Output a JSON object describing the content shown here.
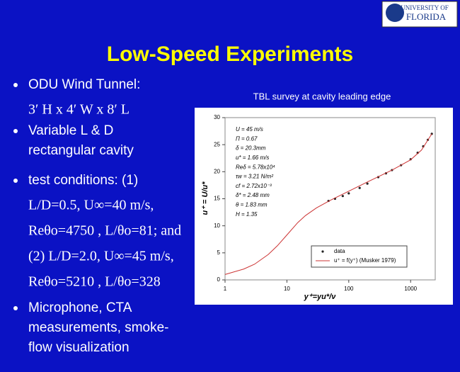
{
  "slide": {
    "logo": [
      "UNIVERSITY OF",
      "FLORIDA"
    ],
    "title": "Low-Speed Experiments",
    "bullets": [
      {
        "lines": [
          {
            "text": "ODU Wind Tunnel:",
            "font": "sans"
          },
          {
            "text": "3′ H x 4′ W x 8′ L",
            "font": "serif"
          }
        ]
      },
      {
        "lines": [
          {
            "text": "Variable L & D",
            "font": "sans"
          },
          {
            "text": "rectangular cavity",
            "font": "sans"
          }
        ]
      },
      {
        "lines": [
          {
            "text": "test conditions:  (1)",
            "font": "sans"
          },
          {
            "text": "L/D=0.5, U∞=40 m/s,",
            "font": "serif"
          },
          {
            "text": "Reθo=4750 , L/θo=81; and",
            "font": "serif"
          },
          {
            "text": "(2) L/D=2.0, U∞=45 m/s,",
            "font": "serif"
          },
          {
            "text": "Reθo=5210 , L/θo=328",
            "font": "serif"
          }
        ]
      },
      {
        "lines": [
          {
            "text": "Microphone, CTA",
            "font": "sans"
          },
          {
            "text": "measurements, smoke-",
            "font": "sans"
          },
          {
            "text": "flow visualization",
            "font": "sans"
          }
        ]
      }
    ]
  },
  "chart_data": {
    "type": "line",
    "title": "TBL survey at cavity leading edge",
    "x_label": "y⁺=yu*/ν",
    "y_label": "u⁺ = U/u*",
    "xlog": true,
    "xlim": [
      1,
      2500
    ],
    "xticks": [
      1,
      10,
      100,
      1000
    ],
    "ylim": [
      0,
      30
    ],
    "yticks": [
      0,
      5,
      10,
      15,
      20,
      25,
      30
    ],
    "legend": "lower right",
    "annotations": [
      "U = 45 m/s",
      "Π = 0.67",
      "δ = 20.3mm",
      "u* = 1.66 m/s",
      "Reδ = 5.78x10⁴",
      "τw = 3.21 N/m²",
      "cf = 2.72x10⁻³",
      "δ* = 2.48 mm",
      "θ = 1.83 mm",
      "H = 1.35"
    ],
    "series": [
      {
        "name": "data",
        "color": "#222222",
        "mode": "markers",
        "x": [
          47,
          60,
          80,
          100,
          150,
          200,
          300,
          400,
          500,
          700,
          1000,
          1300,
          1600,
          1900,
          2200
        ],
        "values": [
          14.6,
          15,
          15.5,
          16,
          17,
          17.8,
          19,
          19.7,
          20.3,
          21.2,
          22.3,
          23.5,
          24.7,
          25.9,
          27
        ]
      },
      {
        "name": "u⁺ = f(y⁺) (Musker 1979)",
        "color": "#cc3333",
        "mode": "line",
        "x": [
          1,
          2,
          3,
          5,
          7,
          10,
          15,
          20,
          30,
          50,
          100,
          200,
          500,
          1000,
          1500,
          2200
        ],
        "values": [
          1,
          2,
          2.9,
          4.7,
          6.3,
          8.3,
          10.6,
          11.9,
          13.3,
          14.7,
          16.4,
          18.1,
          20.3,
          22.2,
          24,
          27
        ]
      }
    ]
  }
}
